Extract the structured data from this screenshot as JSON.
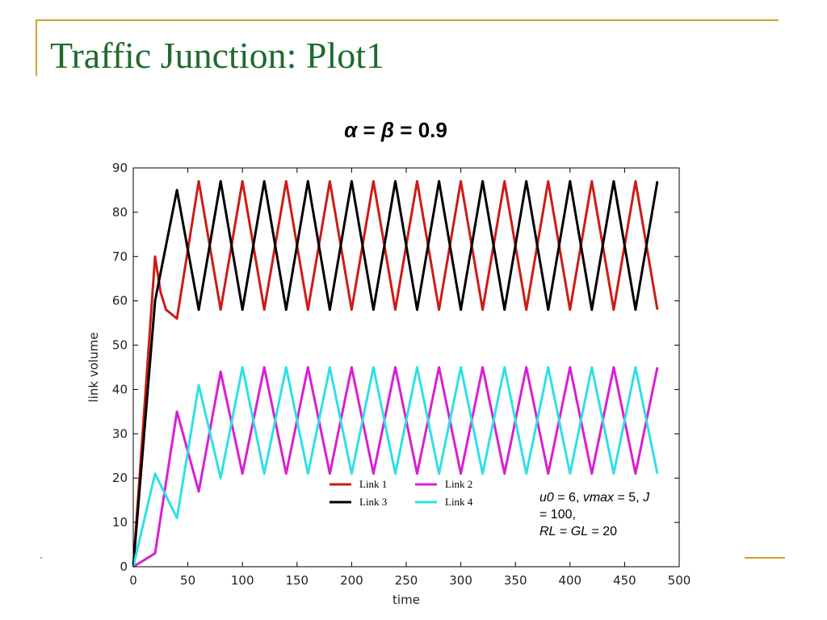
{
  "slide": {
    "title": "Traffic Junction: Plot1"
  },
  "chart_data": {
    "type": "line",
    "title_parts": {
      "alpha": "α",
      "eq1": " = ",
      "beta": "β",
      "eq2": " = 0.9"
    },
    "xlabel": "time",
    "ylabel": "link volume",
    "xlim": [
      0,
      500
    ],
    "ylim": [
      0,
      90
    ],
    "xticks": [
      0,
      50,
      100,
      150,
      200,
      250,
      300,
      350,
      400,
      450,
      500
    ],
    "yticks": [
      0,
      10,
      20,
      30,
      40,
      50,
      60,
      70,
      80,
      90
    ],
    "grid": false,
    "legend_position": "bottom-center",
    "series": [
      {
        "name": "Link 1",
        "color": "#cc1c14",
        "x": [
          0,
          20,
          25,
          30,
          40,
          60,
          80,
          100,
          120,
          140,
          160,
          180,
          200,
          220,
          240,
          260,
          280,
          300,
          320,
          340,
          360,
          380,
          400,
          420,
          440,
          460,
          480
        ],
        "y": [
          0,
          70,
          62,
          58,
          56,
          87,
          58,
          87,
          58,
          87,
          58,
          87,
          58,
          87,
          58,
          87,
          58,
          87,
          58,
          87,
          58,
          87,
          58,
          87,
          58,
          87,
          58
        ]
      },
      {
        "name": "Link 2",
        "color": "#d81fd2",
        "x": [
          0,
          20,
          40,
          60,
          80,
          100,
          120,
          140,
          160,
          180,
          200,
          220,
          240,
          260,
          280,
          300,
          320,
          340,
          360,
          380,
          400,
          420,
          440,
          460,
          480
        ],
        "y": [
          0,
          3,
          35,
          17,
          44,
          21,
          45,
          21,
          45,
          21,
          45,
          21,
          45,
          21,
          45,
          21,
          45,
          21,
          45,
          21,
          45,
          21,
          45,
          21,
          45
        ]
      },
      {
        "name": "Link 3",
        "color": "#000000",
        "x": [
          0,
          20,
          40,
          60,
          80,
          100,
          120,
          140,
          160,
          180,
          200,
          220,
          240,
          260,
          280,
          300,
          320,
          340,
          360,
          380,
          400,
          420,
          440,
          460,
          480
        ],
        "y": [
          0,
          60,
          85,
          58,
          87,
          58,
          87,
          58,
          87,
          58,
          87,
          58,
          87,
          58,
          87,
          58,
          87,
          58,
          87,
          58,
          87,
          58,
          87,
          58,
          87
        ]
      },
      {
        "name": "Link 4",
        "color": "#2ee0e6",
        "x": [
          0,
          20,
          40,
          60,
          80,
          100,
          120,
          140,
          160,
          180,
          200,
          220,
          240,
          260,
          280,
          300,
          320,
          340,
          360,
          380,
          400,
          420,
          440,
          460,
          480
        ],
        "y": [
          0,
          21,
          11,
          41,
          20,
          45,
          21,
          45,
          21,
          45,
          21,
          45,
          21,
          45,
          21,
          45,
          21,
          45,
          21,
          45,
          21,
          45,
          21,
          45,
          21
        ]
      }
    ]
  },
  "annotation": {
    "u0": "u0",
    "u0_val": " = 6, ",
    "vmax": "vmax",
    "vmax_val": " = 5, ",
    "J": "J",
    "J_val": " = 100,",
    "RL": "RL",
    "mid": " = ",
    "GL": "GL",
    "GL_val": " = 20"
  }
}
